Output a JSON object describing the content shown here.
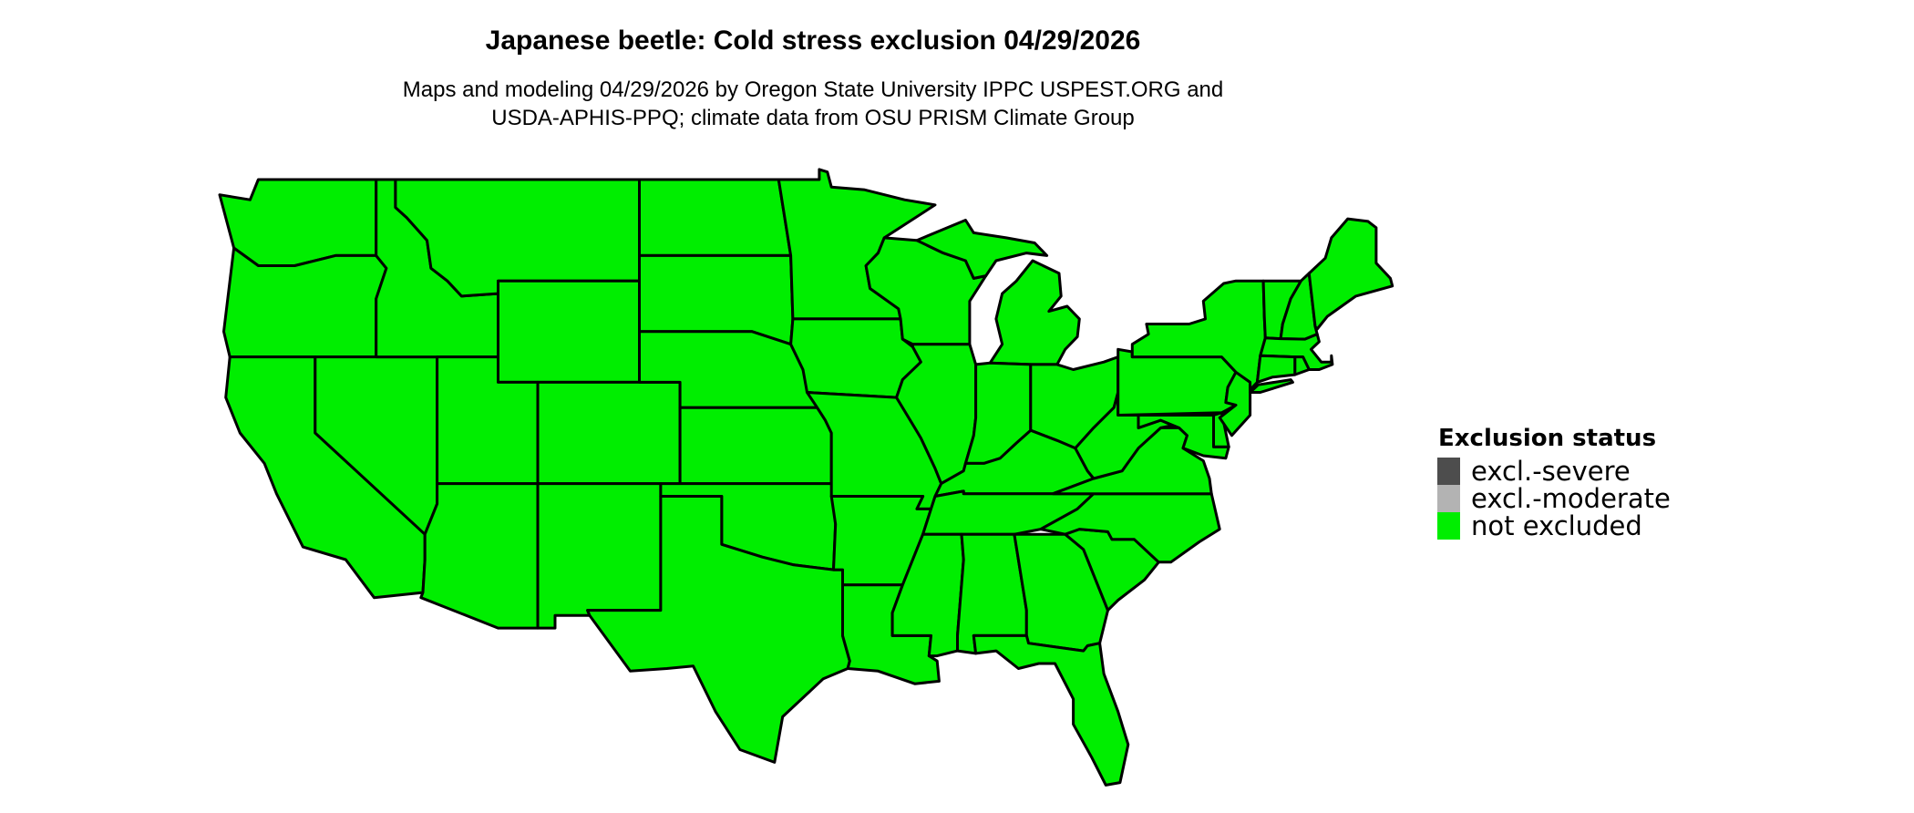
{
  "title": "Japanese beetle: Cold stress exclusion 04/29/2026",
  "subtitle": {
    "line1": "Maps and modeling 04/29/2026 by Oregon State University IPPC USPEST.ORG and",
    "line2": "USDA-APHIS-PPQ; climate data from OSU PRISM Climate Group"
  },
  "map": {
    "region": "Contiguous United States",
    "fill_color": "#00ee00",
    "border_color": "#000000",
    "status_shown": "not excluded"
  },
  "legend": {
    "title": "Exclusion status",
    "items": [
      {
        "label": "excl.-severe",
        "color": "#4d4d4d"
      },
      {
        "label": "excl.-moderate",
        "color": "#b3b3b3"
      },
      {
        "label": "not excluded",
        "color": "#00ee00"
      }
    ]
  }
}
